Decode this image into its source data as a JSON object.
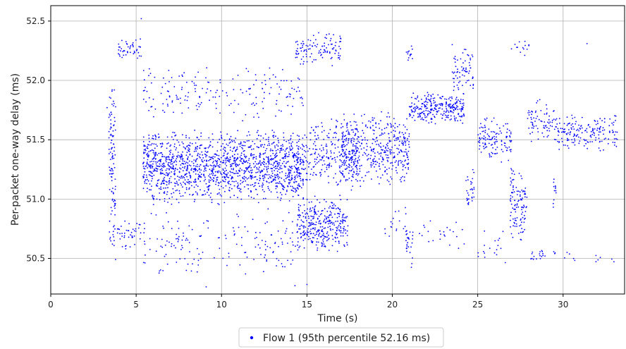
{
  "chart_data": {
    "type": "scatter",
    "title": "",
    "xlabel": "Time (s)",
    "ylabel": "Per-packet one-way delay (ms)",
    "xlim": [
      0,
      33.6
    ],
    "ylim": [
      50.2,
      52.63
    ],
    "xticks": [
      "0",
      "5",
      "10",
      "15",
      "20",
      "25",
      "30"
    ],
    "yticks": [
      "50.5",
      "51.0",
      "51.5",
      "52.0",
      "52.5"
    ],
    "grid": true,
    "legend_position": "bottom-center, below plot",
    "marker_color": "#0000ff",
    "series": [
      {
        "name": "Flow 1 (95th percentile 52.16 ms)",
        "color": "#0000ff",
        "clusters": [
          {
            "x": [
              3.4,
              3.8
            ],
            "y": [
              50.4,
              52.1
            ],
            "count": 110
          },
          {
            "x": [
              3.9,
              5.3
            ],
            "y": [
              52.18,
              52.36
            ],
            "count": 45
          },
          {
            "x": [
              3.9,
              5.4
            ],
            "y": [
              50.55,
              50.85
            ],
            "count": 40
          },
          {
            "x": [
              5.4,
              14.8
            ],
            "y": [
              50.95,
              51.6
            ],
            "count": 1500
          },
          {
            "x": [
              5.4,
              14.8
            ],
            "y": [
              51.65,
              52.15
            ],
            "count": 180
          },
          {
            "x": [
              5.4,
              14.8
            ],
            "y": [
              50.3,
              50.95
            ],
            "count": 170
          },
          {
            "x": [
              14.3,
              17.0
            ],
            "y": [
              52.1,
              52.42
            ],
            "count": 110
          },
          {
            "x": [
              14.4,
              17.4
            ],
            "y": [
              50.55,
              51.05
            ],
            "count": 320
          },
          {
            "x": [
              14.8,
              18.0
            ],
            "y": [
              51.05,
              51.7
            ],
            "count": 260
          },
          {
            "x": [
              17.0,
              21.0
            ],
            "y": [
              51.1,
              51.75
            ],
            "count": 420
          },
          {
            "x": [
              19.5,
              21.0
            ],
            "y": [
              50.6,
              50.95
            ],
            "count": 20
          },
          {
            "x": [
              20.8,
              21.2
            ],
            "y": [
              52.15,
              52.3
            ],
            "count": 14
          },
          {
            "x": [
              20.8,
              21.2
            ],
            "y": [
              50.4,
              50.85
            ],
            "count": 22
          },
          {
            "x": [
              21.0,
              24.2
            ],
            "y": [
              51.62,
              51.92
            ],
            "count": 270
          },
          {
            "x": [
              21.0,
              24.5
            ],
            "y": [
              50.55,
              50.85
            ],
            "count": 25
          },
          {
            "x": [
              23.5,
              24.8
            ],
            "y": [
              51.85,
              52.32
            ],
            "count": 70
          },
          {
            "x": [
              24.3,
              24.8
            ],
            "y": [
              50.9,
              51.25
            ],
            "count": 30
          },
          {
            "x": [
              25.0,
              27.0
            ],
            "y": [
              51.3,
              51.7
            ],
            "count": 120
          },
          {
            "x": [
              25.0,
              27.0
            ],
            "y": [
              50.45,
              50.75
            ],
            "count": 18
          },
          {
            "x": [
              26.9,
              27.9
            ],
            "y": [
              50.6,
              51.3
            ],
            "count": 110
          },
          {
            "x": [
              26.9,
              28.0
            ],
            "y": [
              52.2,
              52.35
            ],
            "count": 14
          },
          {
            "x": [
              27.9,
              29.5
            ],
            "y": [
              51.45,
              51.85
            ],
            "count": 70
          },
          {
            "x": [
              29.4,
              29.6
            ],
            "y": [
              50.9,
              51.2
            ],
            "count": 12
          },
          {
            "x": [
              28.0,
              31.0
            ],
            "y": [
              50.45,
              50.6
            ],
            "count": 25
          },
          {
            "x": [
              29.5,
              33.2
            ],
            "y": [
              51.4,
              51.72
            ],
            "count": 180
          },
          {
            "x": [
              31.3,
              33.2
            ],
            "y": [
              50.45,
              50.55
            ],
            "count": 6
          }
        ],
        "points_sample": [
          {
            "x": 5.3,
            "y": 52.52
          },
          {
            "x": 15.0,
            "y": 50.28
          },
          {
            "x": 31.4,
            "y": 52.31
          },
          {
            "x": 9.1,
            "y": 50.26
          },
          {
            "x": 14.3,
            "y": 50.27
          },
          {
            "x": 3.3,
            "y": 51.77
          }
        ]
      }
    ]
  }
}
